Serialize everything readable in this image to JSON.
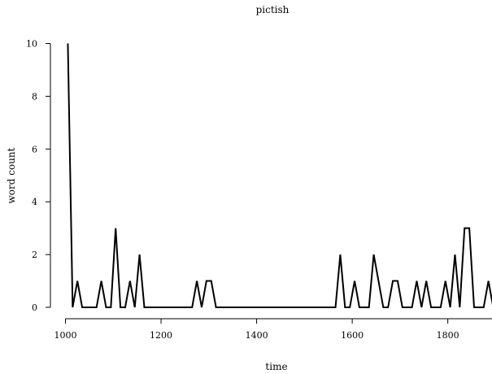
{
  "chart_data": {
    "type": "line",
    "title": "pictish",
    "xlabel": "time",
    "ylabel": "word count",
    "xlim": [
      1000,
      1890
    ],
    "ylim": [
      0,
      10
    ],
    "x_ticks": [
      1000,
      1200,
      1400,
      1600,
      1800
    ],
    "y_ticks": [
      0,
      2,
      4,
      6,
      8,
      10
    ],
    "grid": false,
    "series": [
      {
        "color": "#000000",
        "x": [
          1005,
          1015,
          1025,
          1035,
          1045,
          1055,
          1065,
          1075,
          1085,
          1095,
          1105,
          1115,
          1125,
          1135,
          1145,
          1155,
          1165,
          1175,
          1185,
          1195,
          1205,
          1215,
          1225,
          1235,
          1245,
          1255,
          1265,
          1275,
          1285,
          1295,
          1305,
          1315,
          1325,
          1335,
          1345,
          1355,
          1365,
          1375,
          1385,
          1395,
          1405,
          1415,
          1425,
          1435,
          1445,
          1455,
          1465,
          1475,
          1485,
          1495,
          1505,
          1515,
          1525,
          1535,
          1545,
          1555,
          1565,
          1575,
          1585,
          1595,
          1605,
          1615,
          1625,
          1635,
          1645,
          1655,
          1665,
          1675,
          1685,
          1695,
          1705,
          1715,
          1725,
          1735,
          1745,
          1755,
          1765,
          1775,
          1785,
          1795,
          1805,
          1815,
          1825,
          1835,
          1845,
          1855,
          1865,
          1875,
          1885,
          1895
        ],
        "y": [
          10,
          0,
          1,
          0,
          0,
          0,
          0,
          1,
          0,
          0,
          3,
          0,
          0,
          1,
          0,
          2,
          0,
          0,
          0,
          0,
          0,
          0,
          0,
          0,
          0,
          0,
          0,
          1,
          0,
          1,
          1,
          0,
          0,
          0,
          0,
          0,
          0,
          0,
          0,
          0,
          0,
          0,
          0,
          0,
          0,
          0,
          0,
          0,
          0,
          0,
          0,
          0,
          0,
          0,
          0,
          0,
          0,
          2,
          0,
          0,
          1,
          0,
          0,
          0,
          2,
          1,
          0,
          0,
          1,
          1,
          0,
          0,
          0,
          1,
          0,
          1,
          0,
          0,
          0,
          1,
          0,
          2,
          0,
          3,
          3,
          0,
          0,
          0,
          1,
          0
        ]
      }
    ]
  }
}
